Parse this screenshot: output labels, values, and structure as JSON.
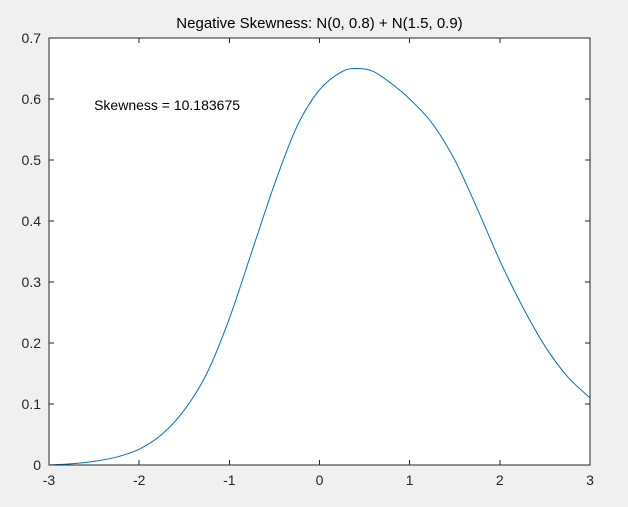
{
  "chart_data": {
    "type": "line",
    "title": "Negative Skewness: N(0, 0.8) + N(1.5, 0.9)",
    "xlabel": "",
    "ylabel": "",
    "xlim": [
      -3,
      3
    ],
    "ylim": [
      0,
      0.7
    ],
    "xticks": [
      -3,
      -2,
      -1,
      0,
      1,
      2,
      3
    ],
    "yticks": [
      0,
      0.1,
      0.2,
      0.3,
      0.4,
      0.5,
      0.6,
      0.7
    ],
    "xtick_labels": [
      "-3",
      "-2",
      "-1",
      "0",
      "1",
      "2",
      "3"
    ],
    "ytick_labels": [
      "0",
      "0.1",
      "0.2",
      "0.3",
      "0.4",
      "0.5",
      "0.6",
      "0.7"
    ],
    "grid": false,
    "annotation": {
      "text": "Skewness = 10.183675",
      "x": -2.5,
      "y": 0.59
    },
    "series": [
      {
        "color": "#0072bd",
        "x": [
          -3.0,
          -2.75,
          -2.5,
          -2.25,
          -2.0,
          -1.75,
          -1.5,
          -1.25,
          -1.0,
          -0.75,
          -0.5,
          -0.25,
          0.0,
          0.25,
          0.43,
          0.6,
          0.8,
          1.0,
          1.25,
          1.5,
          1.75,
          2.0,
          2.25,
          2.5,
          2.75,
          3.0
        ],
        "y": [
          0.0,
          0.002,
          0.006,
          0.013,
          0.026,
          0.05,
          0.09,
          0.15,
          0.24,
          0.35,
          0.46,
          0.555,
          0.615,
          0.645,
          0.65,
          0.645,
          0.625,
          0.6,
          0.56,
          0.5,
          0.42,
          0.335,
          0.26,
          0.195,
          0.145,
          0.11
        ]
      }
    ]
  }
}
